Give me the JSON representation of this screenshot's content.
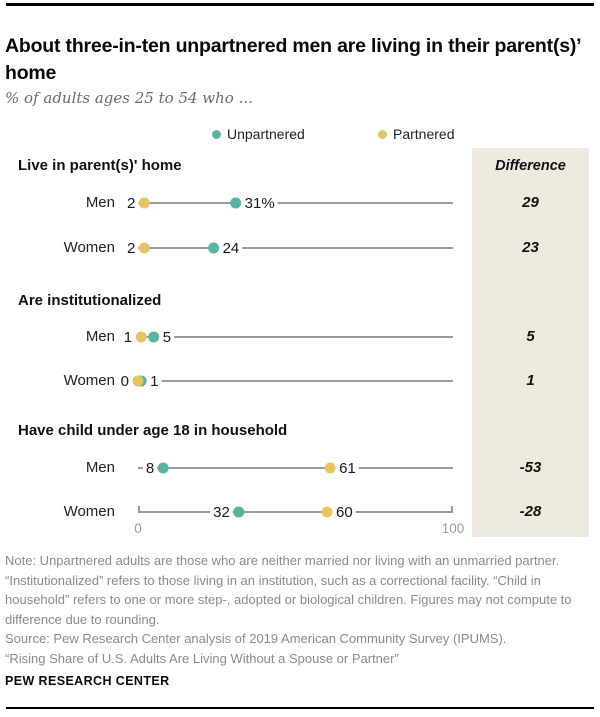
{
  "header": {
    "title": "About three-in-ten unpartnered men are living in their parent(s)’ home",
    "subtitle": "% of adults ages 25 to 54 who ..."
  },
  "legend": [
    {
      "label": "Unpartnered",
      "color": "#59b3a2"
    },
    {
      "label": "Partnered",
      "color": "#e6c45f"
    }
  ],
  "difference_header": "Difference",
  "chart_data": {
    "type": "dumbbell",
    "axis": {
      "min": 0,
      "max": 100,
      "tick_labels": [
        "0",
        "100"
      ]
    },
    "series_colors": {
      "unpartnered": "#59b3a2",
      "partnered": "#e6c45f"
    },
    "line_color": "#9a9a9a",
    "sections": [
      {
        "header": "Live in parent(s)' home",
        "rows": [
          {
            "label": "Men",
            "unpartnered": {
              "value": 31,
              "display": "31%"
            },
            "partnered": {
              "value": 2,
              "display": "2"
            },
            "difference": "29",
            "axis": false
          },
          {
            "label": "Women",
            "unpartnered": {
              "value": 24,
              "display": "24"
            },
            "partnered": {
              "value": 2,
              "display": "2"
            },
            "difference": "23",
            "axis": false
          }
        ]
      },
      {
        "header": "Are institutionalized",
        "rows": [
          {
            "label": "Men",
            "unpartnered": {
              "value": 5,
              "display": "5"
            },
            "partnered": {
              "value": 1,
              "display": "1"
            },
            "difference": "5",
            "axis": false
          },
          {
            "label": "Women",
            "unpartnered": {
              "value": 1,
              "display": "1"
            },
            "partnered": {
              "value": 0,
              "display": "0"
            },
            "difference": "1",
            "axis": false
          }
        ]
      },
      {
        "header": "Have child under age 18 in household",
        "rows": [
          {
            "label": "Men",
            "unpartnered": {
              "value": 8,
              "display": "8"
            },
            "partnered": {
              "value": 61,
              "display": "61"
            },
            "difference": "-53",
            "axis": false
          },
          {
            "label": "Women",
            "unpartnered": {
              "value": 32,
              "display": "32"
            },
            "partnered": {
              "value": 60,
              "display": "60"
            },
            "difference": "-28",
            "axis": true
          }
        ]
      }
    ]
  },
  "footer": {
    "note": "Note: Unpartnered adults are those who are neither married nor living with an unmarried partner. “Institutionalized” refers to those living in an institution, such as a correctional facility. “Child in household” refers to one or more step-, adopted or biological children. Figures may not compute to difference due to rounding.",
    "source": "Source: Pew Research Center analysis of 2019 American Community Survey (IPUMS).",
    "quote": "“Rising Share of U.S. Adults Are Living Without a Spouse or Partner”",
    "brand": "PEW RESEARCH CENTER"
  }
}
